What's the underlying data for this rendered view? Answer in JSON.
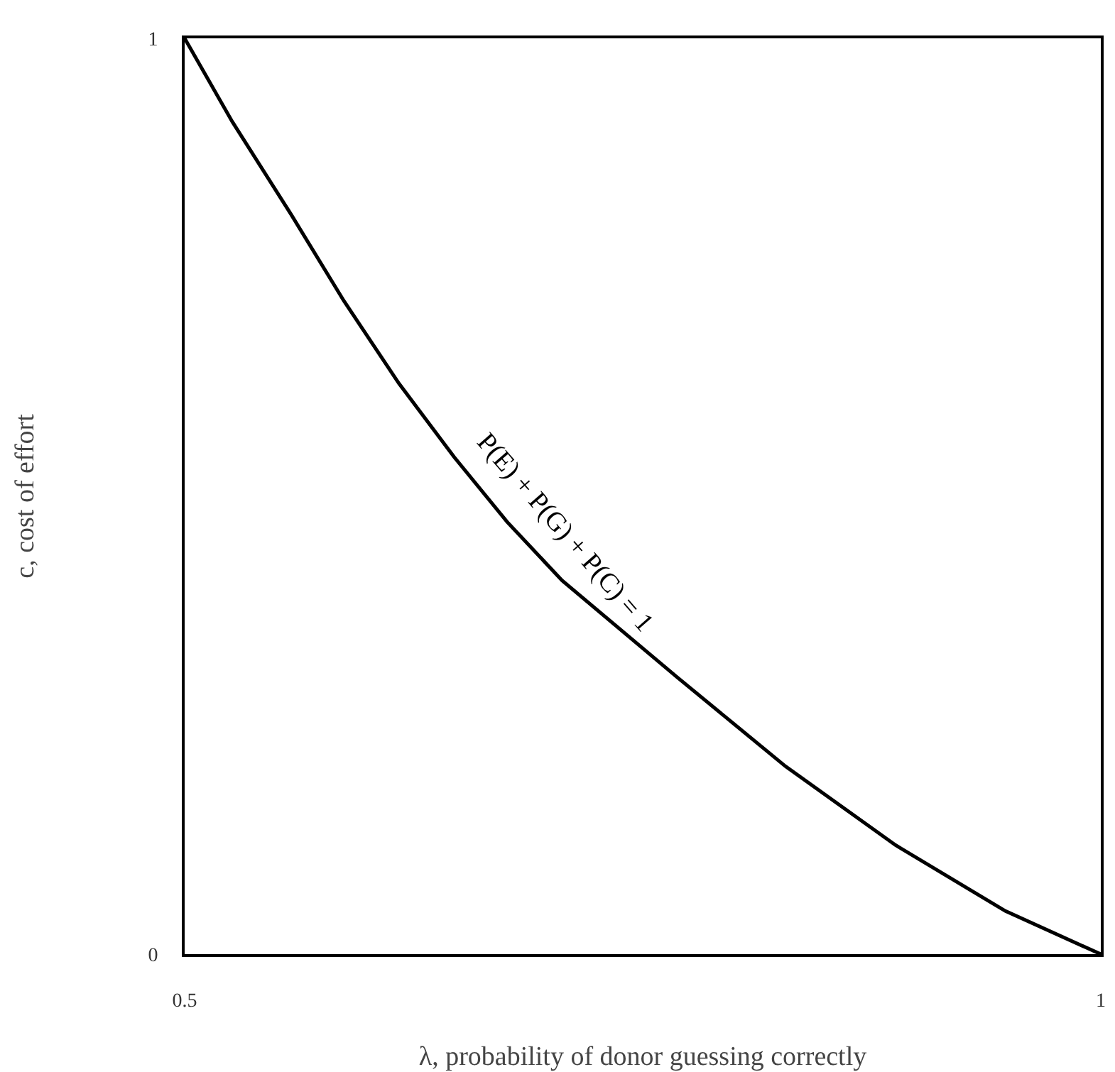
{
  "chart_data": {
    "type": "line",
    "xlabel": "λ, probability of donor guessing correctly",
    "ylabel": "c, cost of effort",
    "x": [
      0.5,
      0.526,
      0.558,
      0.587,
      0.617,
      0.647,
      0.676,
      0.706,
      0.769,
      0.828,
      0.888,
      0.948,
      1
    ],
    "series": [
      {
        "color": "#000000",
        "values": [
          1,
          0.909,
          0.808,
          0.713,
          0.623,
          0.543,
          0.472,
          0.408,
          0.302,
          0.205,
          0.119,
          0.047,
          0
        ]
      }
    ],
    "xlim": [
      0.5,
      1
    ],
    "ylim": [
      0,
      1
    ],
    "xticks": [
      0.5,
      1
    ],
    "yticks": [
      0,
      1
    ],
    "marker": "none",
    "line_style": "solid",
    "annotations": [
      {
        "text": "P(E) + P(G) + P(C) = 1",
        "x": 0.7,
        "y": 0.42
      }
    ]
  }
}
